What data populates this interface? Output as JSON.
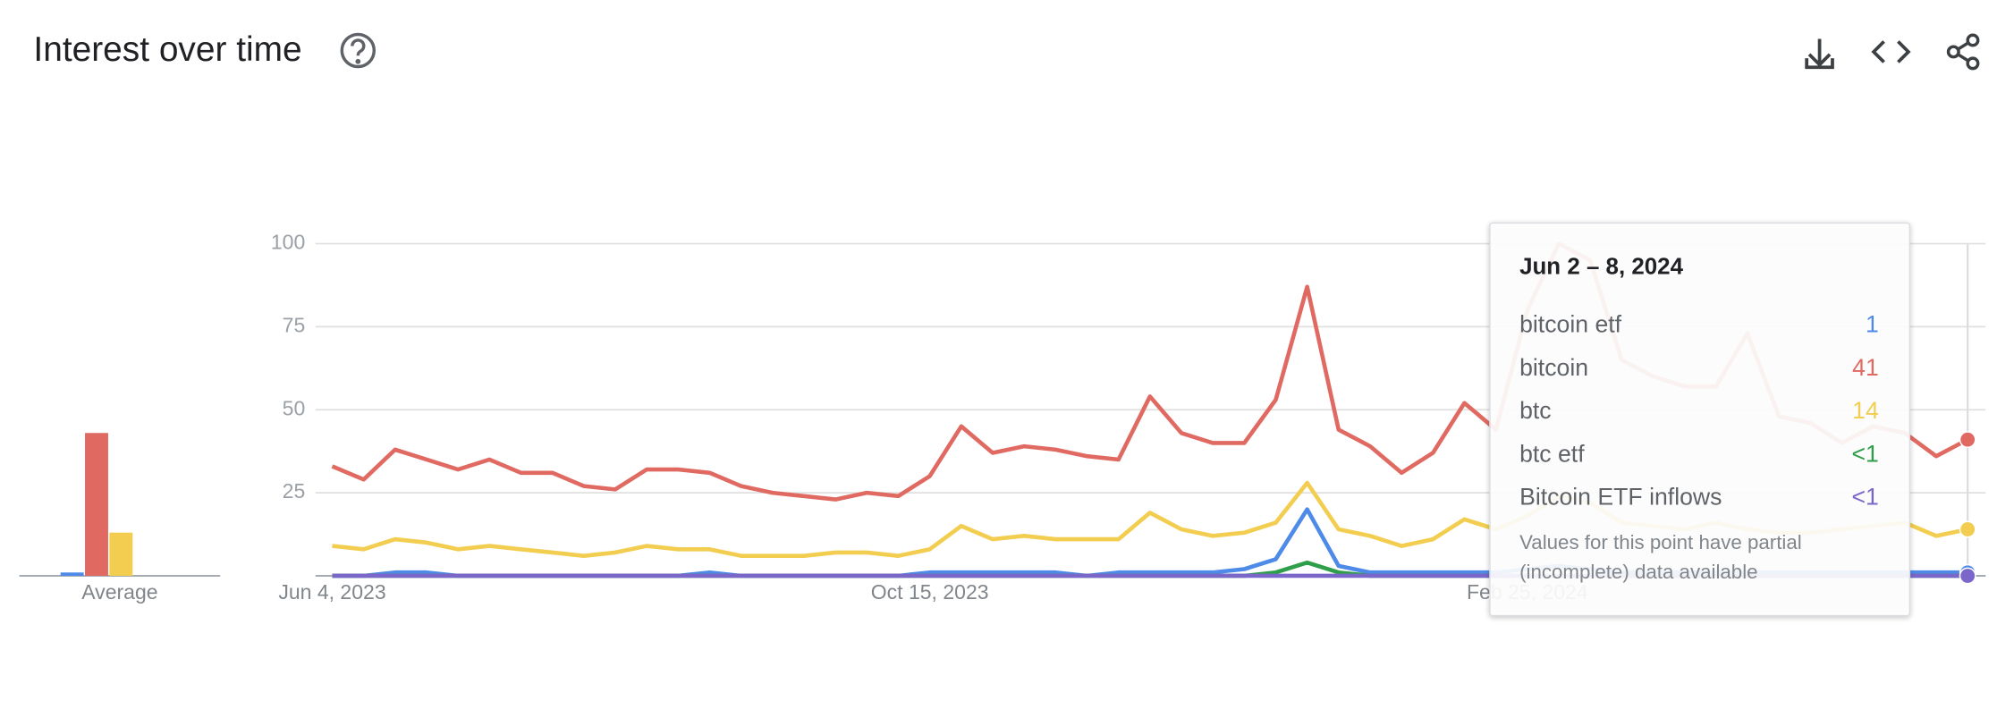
{
  "header": {
    "title": "Interest over time"
  },
  "chart_data": {
    "type": "line",
    "categories": [
      "Jun 4, 2023",
      null,
      null,
      null,
      null,
      null,
      null,
      null,
      null,
      null,
      null,
      null,
      null,
      null,
      null,
      null,
      null,
      null,
      null,
      "Oct 15, 2023",
      null,
      null,
      null,
      null,
      null,
      null,
      null,
      null,
      null,
      null,
      null,
      null,
      null,
      null,
      null,
      null,
      null,
      null,
      "Feb 25, 2024",
      null,
      null,
      null,
      null,
      null,
      null,
      null,
      null,
      null,
      null,
      null,
      null,
      null,
      null
    ],
    "ylim": [
      0,
      100
    ],
    "yticks": [
      0,
      25,
      50,
      75,
      100
    ],
    "grid": true,
    "series": [
      {
        "name": "bitcoin etf",
        "color": "#4e8ae8",
        "values": [
          0,
          0,
          1,
          1,
          0,
          0,
          0,
          0,
          0,
          0,
          0,
          0,
          1,
          0,
          0,
          0,
          0,
          0,
          0,
          1,
          1,
          1,
          1,
          1,
          0,
          1,
          1,
          1,
          1,
          2,
          5,
          20,
          3,
          1,
          1,
          1,
          1,
          1,
          2,
          3,
          2,
          1,
          1,
          1,
          1,
          1,
          1,
          1,
          1,
          1,
          1,
          1,
          1
        ]
      },
      {
        "name": "bitcoin",
        "color": "#e06a62",
        "values": [
          33,
          29,
          38,
          35,
          32,
          35,
          31,
          31,
          27,
          26,
          32,
          32,
          31,
          27,
          25,
          24,
          23,
          25,
          24,
          30,
          45,
          37,
          39,
          38,
          36,
          35,
          54,
          43,
          40,
          40,
          53,
          87,
          44,
          39,
          31,
          37,
          52,
          44,
          80,
          100,
          95,
          65,
          60,
          57,
          57,
          73,
          48,
          46,
          40,
          45,
          43,
          36,
          41
        ]
      },
      {
        "name": "btc",
        "color": "#f2cd4f",
        "values": [
          9,
          8,
          11,
          10,
          8,
          9,
          8,
          7,
          6,
          7,
          9,
          8,
          8,
          6,
          6,
          6,
          7,
          7,
          6,
          8,
          15,
          11,
          12,
          11,
          11,
          11,
          19,
          14,
          12,
          13,
          16,
          28,
          14,
          12,
          9,
          11,
          17,
          14,
          18,
          24,
          22,
          16,
          15,
          14,
          16,
          14,
          13,
          13,
          14,
          15,
          16,
          12,
          14
        ]
      },
      {
        "name": "btc etf",
        "color": "#2e9e4a",
        "values": [
          0,
          0,
          0,
          0,
          0,
          0,
          0,
          0,
          0,
          0,
          0,
          0,
          0,
          0,
          0,
          0,
          0,
          0,
          0,
          0,
          0,
          0,
          0,
          0,
          0,
          0,
          0,
          0,
          0,
          0,
          1,
          4,
          1,
          0,
          0,
          0,
          0,
          0,
          0,
          0,
          0,
          0,
          0,
          0,
          0,
          0,
          0,
          0,
          0,
          0,
          0,
          0,
          0
        ],
        "value_labels": [
          null,
          null,
          null,
          null,
          null,
          null,
          null,
          null,
          null,
          null,
          null,
          null,
          null,
          null,
          null,
          null,
          null,
          null,
          null,
          null,
          null,
          null,
          null,
          null,
          null,
          null,
          null,
          null,
          null,
          null,
          null,
          null,
          null,
          null,
          null,
          null,
          null,
          null,
          null,
          null,
          null,
          null,
          null,
          null,
          null,
          null,
          null,
          null,
          null,
          null,
          null,
          null,
          "<1"
        ]
      },
      {
        "name": "Bitcoin ETF inflows",
        "color": "#7b67c9",
        "values": [
          0,
          0,
          0,
          0,
          0,
          0,
          0,
          0,
          0,
          0,
          0,
          0,
          0,
          0,
          0,
          0,
          0,
          0,
          0,
          0,
          0,
          0,
          0,
          0,
          0,
          0,
          0,
          0,
          0,
          0,
          0,
          0,
          0,
          0,
          0,
          0,
          0,
          0,
          0,
          0,
          0,
          0,
          0,
          0,
          0,
          0,
          0,
          0,
          0,
          0,
          0,
          0,
          0
        ],
        "value_labels": [
          null,
          null,
          null,
          null,
          null,
          null,
          null,
          null,
          null,
          null,
          null,
          null,
          null,
          null,
          null,
          null,
          null,
          null,
          null,
          null,
          null,
          null,
          null,
          null,
          null,
          null,
          null,
          null,
          null,
          null,
          null,
          null,
          null,
          null,
          null,
          null,
          null,
          null,
          null,
          null,
          null,
          null,
          null,
          null,
          null,
          null,
          null,
          null,
          null,
          null,
          null,
          null,
          "<1"
        ]
      }
    ],
    "averages_label": "Average",
    "averages": [
      1,
      43,
      13,
      0,
      0
    ]
  },
  "tooltip": {
    "title": "Jun 2 – 8, 2024",
    "note": [
      "Values for this point have partial",
      "(incomplete) data available"
    ]
  }
}
